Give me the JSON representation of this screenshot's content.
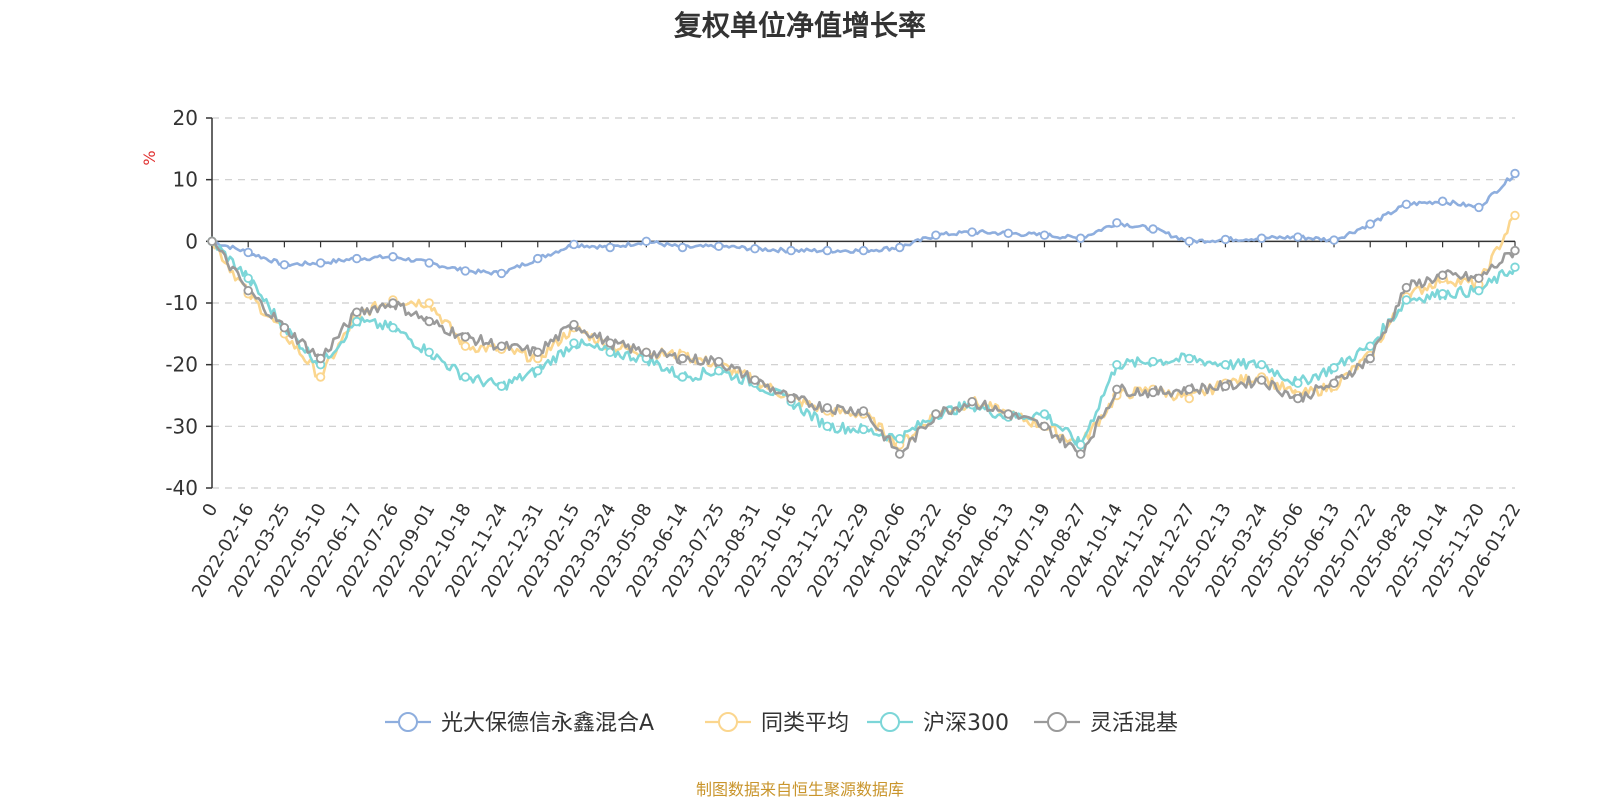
{
  "chart_data": {
    "type": "line",
    "title": "复权单位净值增长率",
    "ylabel": "%",
    "ylim": [
      -40,
      20
    ],
    "yticks": [
      "20",
      "10",
      "0",
      "-10",
      "-20",
      "-30",
      "-40"
    ],
    "categories": [
      "0",
      "2022-02-16",
      "2022-03-25",
      "2022-05-10",
      "2022-06-17",
      "2022-07-26",
      "2022-09-01",
      "2022-10-18",
      "2022-11-24",
      "2022-12-31",
      "2023-02-15",
      "2023-03-24",
      "2023-05-08",
      "2023-06-14",
      "2023-07-25",
      "2023-08-31",
      "2023-10-16",
      "2023-11-22",
      "2023-12-29",
      "2024-02-06",
      "2024-03-22",
      "2024-05-06",
      "2024-06-13",
      "2024-07-19",
      "2024-08-27",
      "2024-10-14",
      "2024-11-20",
      "2024-12-27",
      "2025-02-13",
      "2025-03-24",
      "2025-05-06",
      "2025-06-13",
      "2025-07-22",
      "2025-08-28",
      "2025-10-14",
      "2025-11-20",
      "2026-01-22"
    ],
    "series": [
      {
        "name": "光大保德信永鑫混合A",
        "color": "#8eaede",
        "values": [
          0,
          -1.8,
          -3.8,
          -3.5,
          -2.8,
          -2.5,
          -3.5,
          -4.8,
          -5.2,
          -2.8,
          -0.5,
          -1,
          0,
          -1,
          -0.8,
          -1.2,
          -1.5,
          -1.5,
          -1.5,
          -1,
          1,
          1.5,
          1.3,
          1,
          0.5,
          3,
          2,
          0,
          0.3,
          0.5,
          0.7,
          0.2,
          2.8,
          6,
          6.5,
          5.5,
          11
        ]
      },
      {
        "name": "同类平均",
        "color": "#fbd68e",
        "values": [
          0,
          -8.5,
          -15,
          -22,
          -12,
          -9.5,
          -10,
          -17,
          -17.5,
          -19,
          -14,
          -17,
          -18,
          -18.5,
          -20,
          -22.5,
          -25.5,
          -27.5,
          -28,
          -33,
          -28,
          -26,
          -28,
          -30,
          -33,
          -25,
          -24,
          -25.5,
          -23,
          -22,
          -25,
          -23.5,
          -18.5,
          -9,
          -6,
          -7,
          4.2
        ]
      },
      {
        "name": "沪深300",
        "color": "#7cd6d8",
        "values": [
          0,
          -6,
          -14,
          -20,
          -13,
          -14,
          -18,
          -22,
          -23.5,
          -21,
          -16.5,
          -18,
          -19,
          -22,
          -21,
          -23,
          -26,
          -30,
          -30.5,
          -32,
          -28,
          -26.5,
          -28.5,
          -28,
          -33,
          -20,
          -19.5,
          -19,
          -20,
          -20,
          -23,
          -20.5,
          -17,
          -9.5,
          -8.5,
          -8,
          -4.2
        ]
      },
      {
        "name": "灵活混基",
        "color": "#9a9a9a",
        "values": [
          0,
          -8,
          -14,
          -19,
          -11.5,
          -10,
          -13,
          -15.5,
          -17,
          -18,
          -13.5,
          -16.5,
          -18,
          -19,
          -19.5,
          -22.5,
          -25.5,
          -27,
          -27.5,
          -34.5,
          -28,
          -26,
          -28,
          -30,
          -34.5,
          -24,
          -24.5,
          -24,
          -23.5,
          -22.5,
          -25.5,
          -23,
          -19,
          -7.5,
          -5.5,
          -6,
          -1.5
        ]
      }
    ]
  },
  "footer": {
    "text": "制图数据来自恒生聚源数据库",
    "color": "#c9952c"
  },
  "colors": {
    "axis": "#333333",
    "grid": "#cccccc",
    "ylabel": "#e03030"
  }
}
